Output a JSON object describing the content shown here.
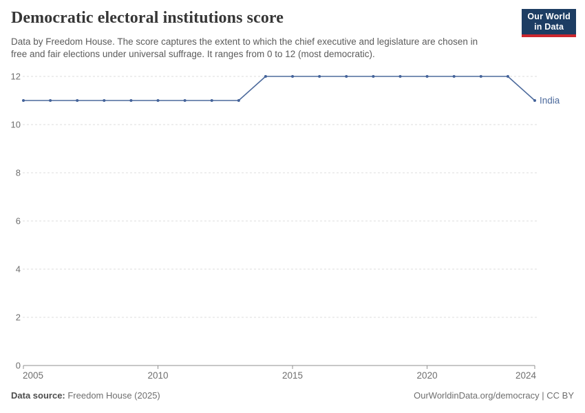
{
  "header": {
    "title": "Democratic electoral institutions score",
    "subtitle": "Data by Freedom House. The score captures the extent to which the chief executive and legislature are chosen in free and fair elections under universal suffrage. It ranges from 0 to 12 (most democratic).",
    "logo": {
      "line1": "Our World",
      "line2": "in Data",
      "bg_color": "#1d3d63",
      "accent_color": "#cc272e",
      "text_color": "#ffffff"
    }
  },
  "footer": {
    "source_label": "Data source:",
    "source_value": " Freedom House (2025)",
    "right_text": "OurWorldinData.org/democracy | CC BY"
  },
  "colors": {
    "series_line": "#4C6A9C",
    "series_point": "#44639a",
    "grid_line": "#dcdcdc",
    "axis_line": "#8f8f8f",
    "tick_label": "#6e6e6e"
  },
  "chart_data": {
    "type": "line",
    "title": "Democratic electoral institutions score",
    "x": [
      2005,
      2006,
      2007,
      2008,
      2009,
      2010,
      2011,
      2012,
      2013,
      2014,
      2015,
      2016,
      2017,
      2018,
      2019,
      2020,
      2021,
      2022,
      2023,
      2024
    ],
    "series": [
      {
        "name": "India",
        "color": "#4C6A9C",
        "values": [
          11,
          11,
          11,
          11,
          11,
          11,
          11,
          11,
          11,
          12,
          12,
          12,
          12,
          12,
          12,
          12,
          12,
          12,
          12,
          11
        ]
      }
    ],
    "end_label": "India",
    "xlim": [
      2005,
      2024
    ],
    "ylim": [
      0,
      12
    ],
    "x_ticks": [
      "2005",
      "2010",
      "2015",
      "2020",
      "2024"
    ],
    "y_ticks": [
      "0",
      "2",
      "4",
      "6",
      "8",
      "10",
      "12"
    ],
    "grid": "horizontal dashed gridlines at even values; solid baseline at 0",
    "legend_position": "end-of-line label",
    "xlabel": "",
    "ylabel": ""
  }
}
